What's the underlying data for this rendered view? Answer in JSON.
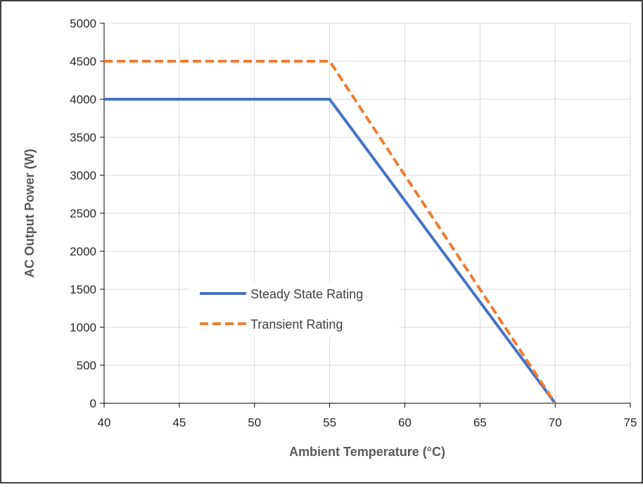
{
  "chart_data": {
    "type": "line",
    "xlabel": "Ambient Temperature (°C)",
    "ylabel": "AC Output Power (W)",
    "xlim": [
      40,
      75
    ],
    "ylim": [
      0,
      5000
    ],
    "xticks": [
      40,
      45,
      50,
      55,
      60,
      65,
      70,
      75
    ],
    "yticks": [
      0,
      500,
      1000,
      1500,
      2000,
      2500,
      3000,
      3500,
      4000,
      4500,
      5000
    ],
    "grid": true,
    "legend": "center-left",
    "series": [
      {
        "name": "Steady State Rating",
        "color": "#4472c4",
        "style": "solid",
        "x": [
          40,
          55,
          70
        ],
        "y": [
          4000,
          4000,
          0
        ]
      },
      {
        "name": "Transient Rating",
        "color": "#ed7d31",
        "style": "dashed",
        "x": [
          40,
          55,
          70
        ],
        "y": [
          4500,
          4500,
          0
        ]
      }
    ]
  }
}
